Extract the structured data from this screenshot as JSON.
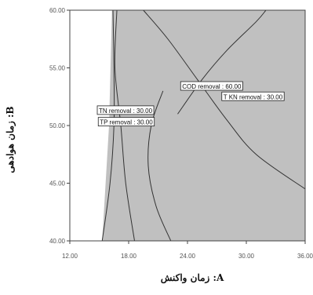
{
  "chart_data": {
    "type": "contour",
    "title": "",
    "xlabel": "A: زمان واکنش",
    "ylabel": "B: زمان هوادهی",
    "xlim": [
      12,
      36
    ],
    "ylim": [
      40,
      60
    ],
    "x_ticks": [
      "12.00",
      "18.00",
      "24.00",
      "30.00",
      "36.00"
    ],
    "y_ticks": [
      "40.00",
      "45.00",
      "50.00",
      "55.00",
      "60.00"
    ],
    "grid": false,
    "colors": {
      "feasible_region": "#c0c0c0",
      "infeasible_region": "#ffffff",
      "contour_line": "#333333"
    },
    "feasible_region": {
      "left_boundary": [
        [
          16.3,
          60
        ],
        [
          16.0,
          50
        ],
        [
          15.3,
          40
        ]
      ]
    },
    "contours": [
      {
        "label": "COD removal : 60.00",
        "label_at": [
          23.3,
          53.4
        ],
        "points": [
          [
            19.5,
            60
          ],
          [
            22,
            57.5
          ],
          [
            25,
            54
          ],
          [
            28,
            50.5
          ],
          [
            31,
            47.5
          ],
          [
            36,
            44.5
          ]
        ]
      },
      {
        "label": "T KN removal : 30.00",
        "label_at": [
          27.5,
          52.5
        ],
        "points": [
          [
            23,
            51
          ],
          [
            25.5,
            54
          ],
          [
            28,
            56.5
          ],
          [
            31,
            59
          ],
          [
            32,
            60
          ]
        ]
      },
      {
        "label": "TN removal : 30.00",
        "label_at": [
          14.8,
          51.3
        ],
        "points": [
          [
            16.8,
            60
          ],
          [
            16.6,
            55
          ],
          [
            17.2,
            50
          ],
          [
            17.7,
            45
          ],
          [
            18.6,
            40
          ]
        ]
      },
      {
        "label": "TP removal : 30.00",
        "label_at": [
          14.9,
          50.3
        ],
        "points": [
          [
            16.4,
            60
          ],
          [
            16.5,
            55
          ],
          [
            16.5,
            50
          ],
          [
            16.1,
            45
          ],
          [
            15.3,
            40
          ]
        ]
      },
      {
        "label": "",
        "label_at": null,
        "points": [
          [
            21.5,
            53
          ],
          [
            20.3,
            50
          ],
          [
            20.0,
            46.5
          ],
          [
            20.8,
            43
          ],
          [
            22.3,
            40
          ]
        ]
      }
    ]
  }
}
